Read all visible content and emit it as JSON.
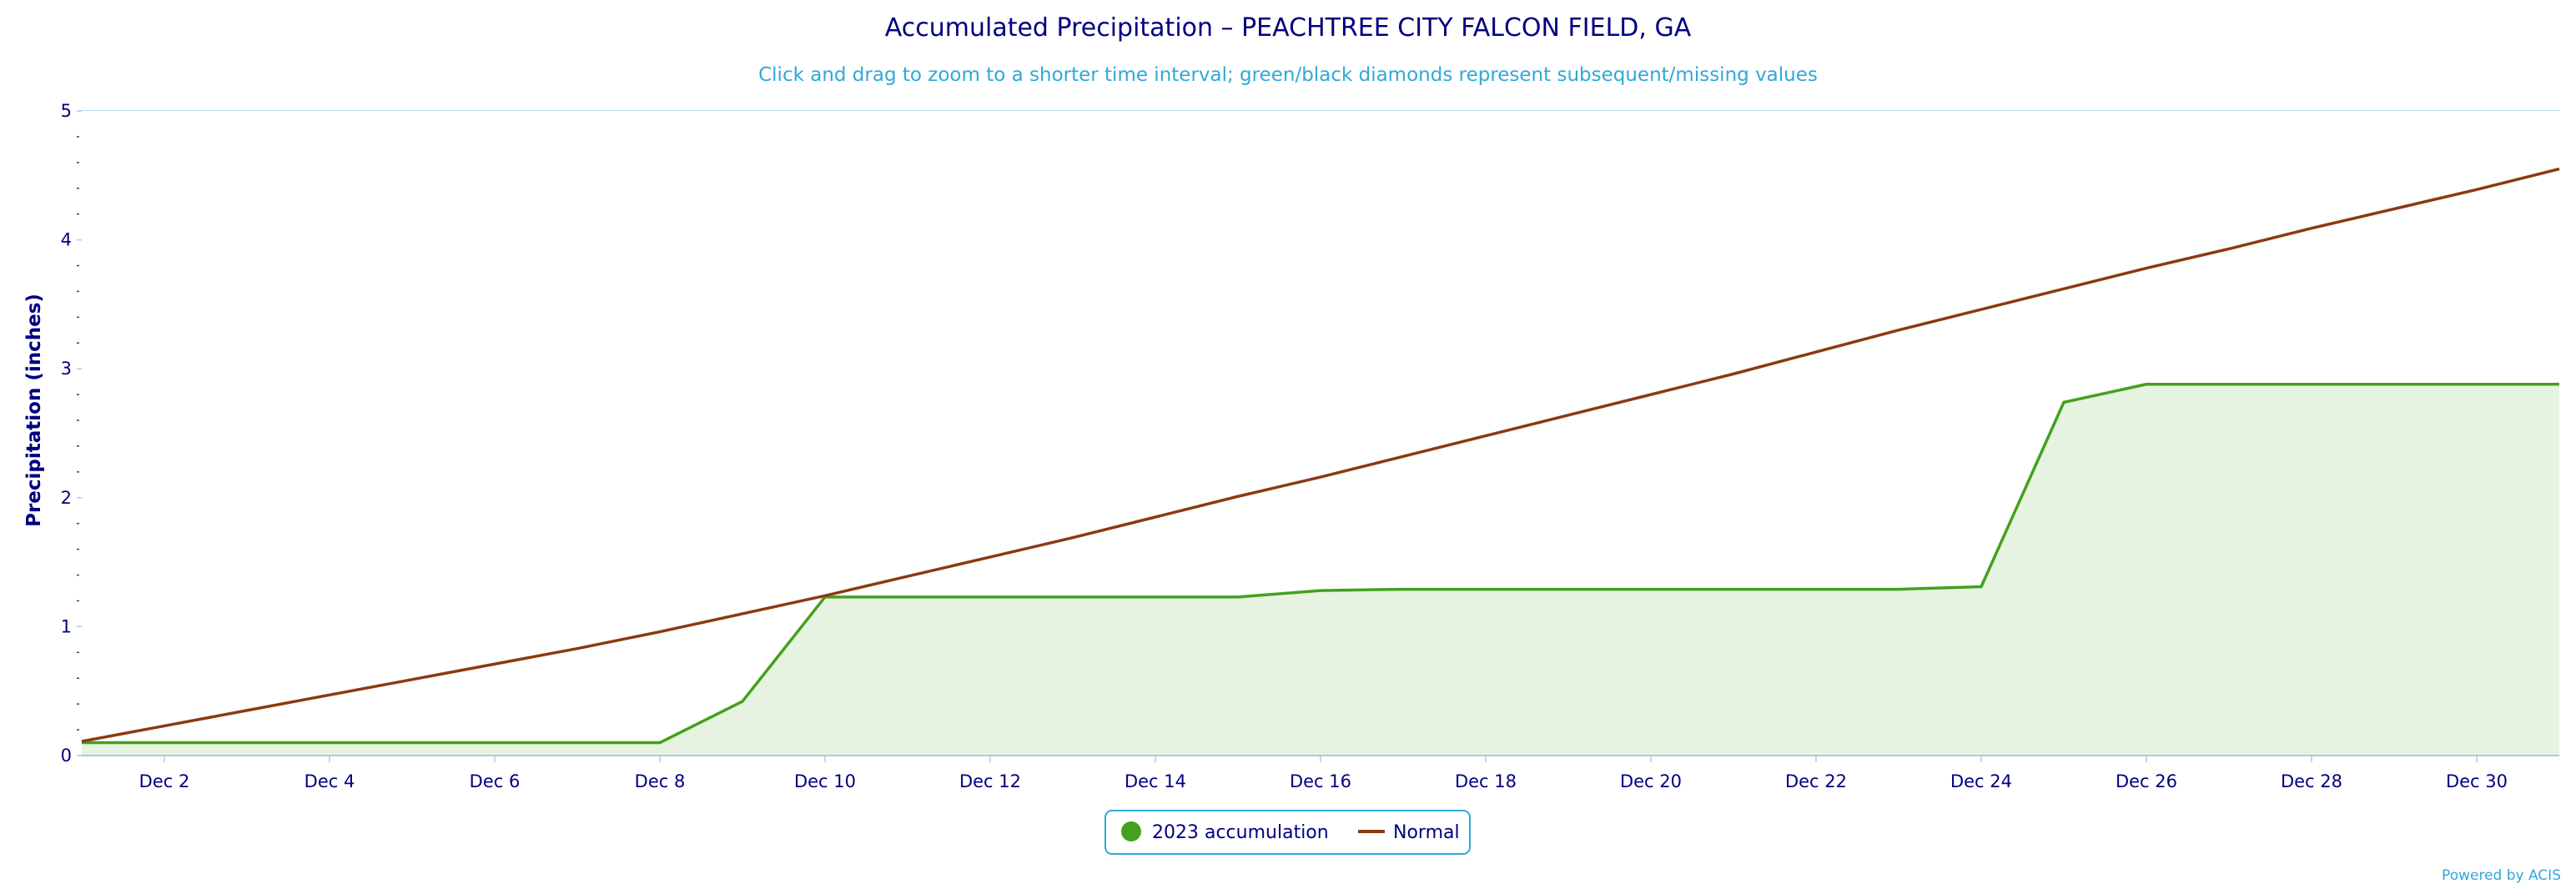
{
  "chart_data": {
    "type": "area",
    "title": "Accumulated Precipitation – PEACHTREE CITY FALCON FIELD, GA",
    "subtitle": "Click and drag to zoom to a shorter time interval; green/black diamonds represent subsequent/missing values",
    "xlabel": "",
    "ylabel": "Precipitation (inches)",
    "x_tick_labels": [
      "Dec 2",
      "Dec 4",
      "Dec 6",
      "Dec 8",
      "Dec 10",
      "Dec 12",
      "Dec 14",
      "Dec 16",
      "Dec 18",
      "Dec 20",
      "Dec 22",
      "Dec 24",
      "Dec 26",
      "Dec 28",
      "Dec 30"
    ],
    "x_tick_days": [
      2,
      4,
      6,
      8,
      10,
      12,
      14,
      16,
      18,
      20,
      22,
      24,
      26,
      28,
      30
    ],
    "xlim": [
      1,
      31
    ],
    "y_ticks": [
      0,
      1,
      2,
      3,
      4,
      5
    ],
    "ylim": [
      0,
      5
    ],
    "grid": true,
    "legend_position": "bottom-center",
    "x": [
      1,
      2,
      3,
      4,
      5,
      6,
      7,
      8,
      9,
      10,
      11,
      12,
      13,
      14,
      15,
      16,
      17,
      18,
      19,
      20,
      21,
      22,
      23,
      24,
      25,
      26,
      27,
      28,
      29,
      30,
      31
    ],
    "series": [
      {
        "name": "2023 accumulation",
        "style": "area",
        "color": "#44a11e",
        "fill": "#e6f3e0",
        "values": [
          0.1,
          0.1,
          0.1,
          0.1,
          0.1,
          0.1,
          0.1,
          0.1,
          0.42,
          1.23,
          1.23,
          1.23,
          1.23,
          1.23,
          1.23,
          1.28,
          1.29,
          1.29,
          1.29,
          1.29,
          1.29,
          1.29,
          1.29,
          1.31,
          2.74,
          2.88,
          2.88,
          2.88,
          2.88,
          2.88,
          2.88
        ]
      },
      {
        "name": "Normal",
        "style": "line",
        "color": "#8b3a12",
        "values": [
          0.11,
          0.23,
          0.35,
          0.47,
          0.59,
          0.71,
          0.83,
          0.96,
          1.1,
          1.24,
          1.39,
          1.54,
          1.69,
          1.85,
          2.01,
          2.16,
          2.32,
          2.48,
          2.64,
          2.8,
          2.96,
          3.13,
          3.3,
          3.46,
          3.62,
          3.78,
          3.93,
          4.09,
          4.24,
          4.39,
          4.55
        ]
      }
    ]
  },
  "credit": "Powered by ACIS",
  "colors": {
    "grid": "#a6cde3",
    "minor_grid": "#ececec",
    "axis_text": "#000080",
    "legend_border": "#30a8d8"
  }
}
